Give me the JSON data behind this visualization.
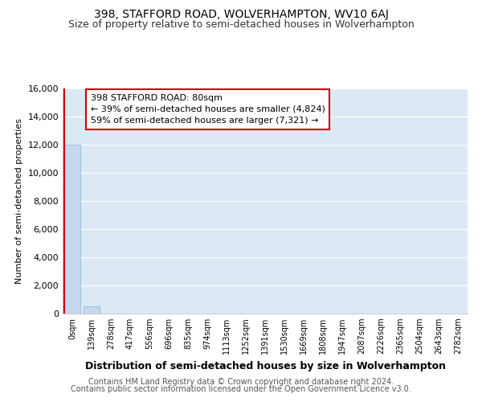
{
  "title": "398, STAFFORD ROAD, WOLVERHAMPTON, WV10 6AJ",
  "subtitle": "Size of property relative to semi-detached houses in Wolverhampton",
  "xlabel": "Distribution of semi-detached houses by size in Wolverhampton",
  "ylabel": "Number of semi-detached properties",
  "annotation_title": "398 STAFFORD ROAD: 80sqm",
  "annotation_line2": "← 39% of semi-detached houses are smaller (4,824)",
  "annotation_line3": "59% of semi-detached houses are larger (7,321) →",
  "footer_line1": "Contains HM Land Registry data © Crown copyright and database right 2024.",
  "footer_line2": "Contains public sector information licensed under the Open Government Licence v3.0.",
  "subject_bar_index": 0,
  "bins": [
    "0sqm",
    "139sqm",
    "278sqm",
    "417sqm",
    "556sqm",
    "696sqm",
    "835sqm",
    "974sqm",
    "1113sqm",
    "1252sqm",
    "1391sqm",
    "1530sqm",
    "1669sqm",
    "1808sqm",
    "1947sqm",
    "2087sqm",
    "2226sqm",
    "2365sqm",
    "2504sqm",
    "2643sqm",
    "2782sqm"
  ],
  "bar_values": [
    12000,
    500,
    0,
    0,
    0,
    0,
    0,
    0,
    0,
    0,
    0,
    0,
    0,
    0,
    0,
    0,
    0,
    0,
    0,
    0,
    0
  ],
  "ylim": [
    0,
    16000
  ],
  "yticks": [
    0,
    2000,
    4000,
    6000,
    8000,
    10000,
    12000,
    14000,
    16000
  ],
  "bar_color": "#c5d8ed",
  "bar_edge_color": "#8ab0d4",
  "subject_line_color": "#cc0000",
  "annotation_box_facecolor": "#ffffff",
  "annotation_box_edgecolor": "#cc0000",
  "chart_bg": "#dce9f5",
  "fig_bg": "#ffffff",
  "grid_color": "#ffffff",
  "title_fontsize": 10,
  "subtitle_fontsize": 9,
  "ylabel_fontsize": 8,
  "xlabel_fontsize": 9,
  "ytick_fontsize": 8,
  "xtick_fontsize": 7,
  "annotation_fontsize": 8,
  "footer_fontsize": 7
}
